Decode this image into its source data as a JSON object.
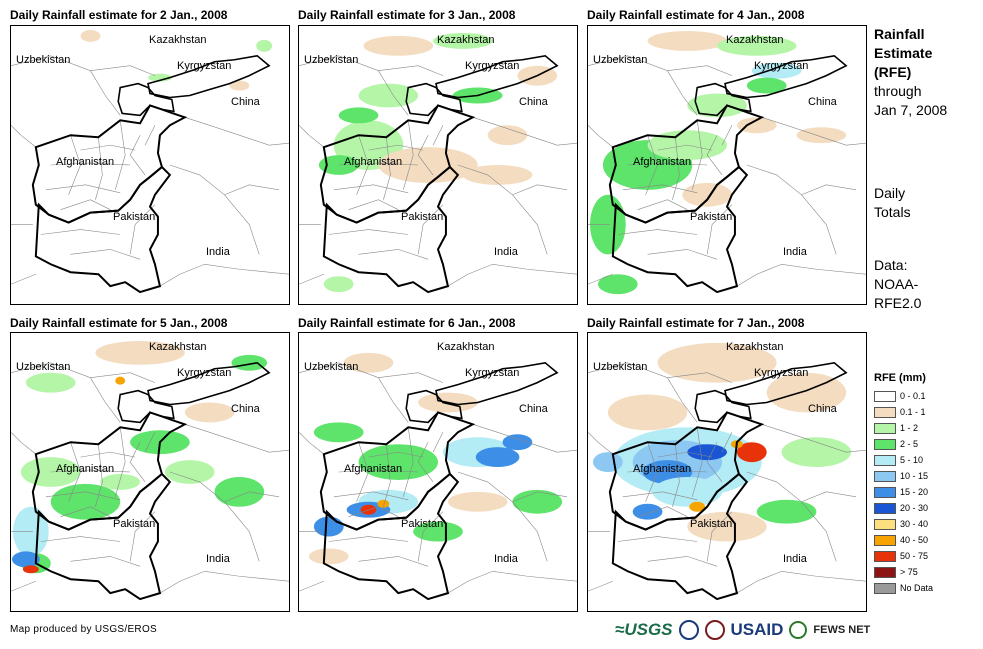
{
  "panels": [
    {
      "title": "Daily Rainfall estimate for 2 Jan., 2008",
      "date": "2 Jan., 2008"
    },
    {
      "title": "Daily Rainfall estimate for 3 Jan., 2008",
      "date": "3 Jan., 2008"
    },
    {
      "title": "Daily Rainfall estimate for 4 Jan., 2008",
      "date": "4 Jan., 2008"
    },
    {
      "title": "Daily Rainfall estimate for 5 Jan., 2008",
      "date": "5 Jan., 2008"
    },
    {
      "title": "Daily Rainfall estimate for 6 Jan., 2008",
      "date": "6 Jan., 2008"
    },
    {
      "title": "Daily Rainfall estimate for 7 Jan., 2008",
      "date": "7 Jan., 2008"
    }
  ],
  "map_labels": {
    "kazakhstan": "Kazakhstan",
    "uzbekistan": "Uzbekistan",
    "kyrgyzstan": "Kyrgyzstan",
    "china": "China",
    "afghanistan": "Afghanistan",
    "pakistan": "Pakistan",
    "india": "India"
  },
  "side_info": {
    "title_line1": "Rainfall",
    "title_line2": "Estimate",
    "title_line3": "(RFE)",
    "through": "through",
    "through_date": "Jan 7, 2008",
    "totals1": "Daily",
    "totals2": "Totals",
    "data_label": "Data:",
    "data_src1": "NOAA-",
    "data_src2": "RFE2.0"
  },
  "legend": {
    "title": "RFE (mm)",
    "items": [
      {
        "label": "0 - 0.1",
        "color": "#ffffff"
      },
      {
        "label": "0.1 - 1",
        "color": "#f3dcc0"
      },
      {
        "label": "1 - 2",
        "color": "#b5f5a8"
      },
      {
        "label": "2 - 5",
        "color": "#5ee36b"
      },
      {
        "label": "5 - 10",
        "color": "#b3ecf5"
      },
      {
        "label": "10 - 15",
        "color": "#8cc8f2"
      },
      {
        "label": "15 - 20",
        "color": "#3c8ee6"
      },
      {
        "label": "20 - 30",
        "color": "#1a55d4"
      },
      {
        "label": "30 - 40",
        "color": "#fce080"
      },
      {
        "label": "40 - 50",
        "color": "#f7a400"
      },
      {
        "label": "50 - 75",
        "color": "#e8320a"
      },
      {
        "label": "> 75",
        "color": "#8c1414"
      },
      {
        "label": "No Data",
        "color": "#9a9a9a"
      }
    ]
  },
  "credit": "Map produced by USGS/EROS",
  "logos": {
    "usgs": "≈USGS",
    "usaid": "USAID",
    "fews": "FEWS NET"
  }
}
